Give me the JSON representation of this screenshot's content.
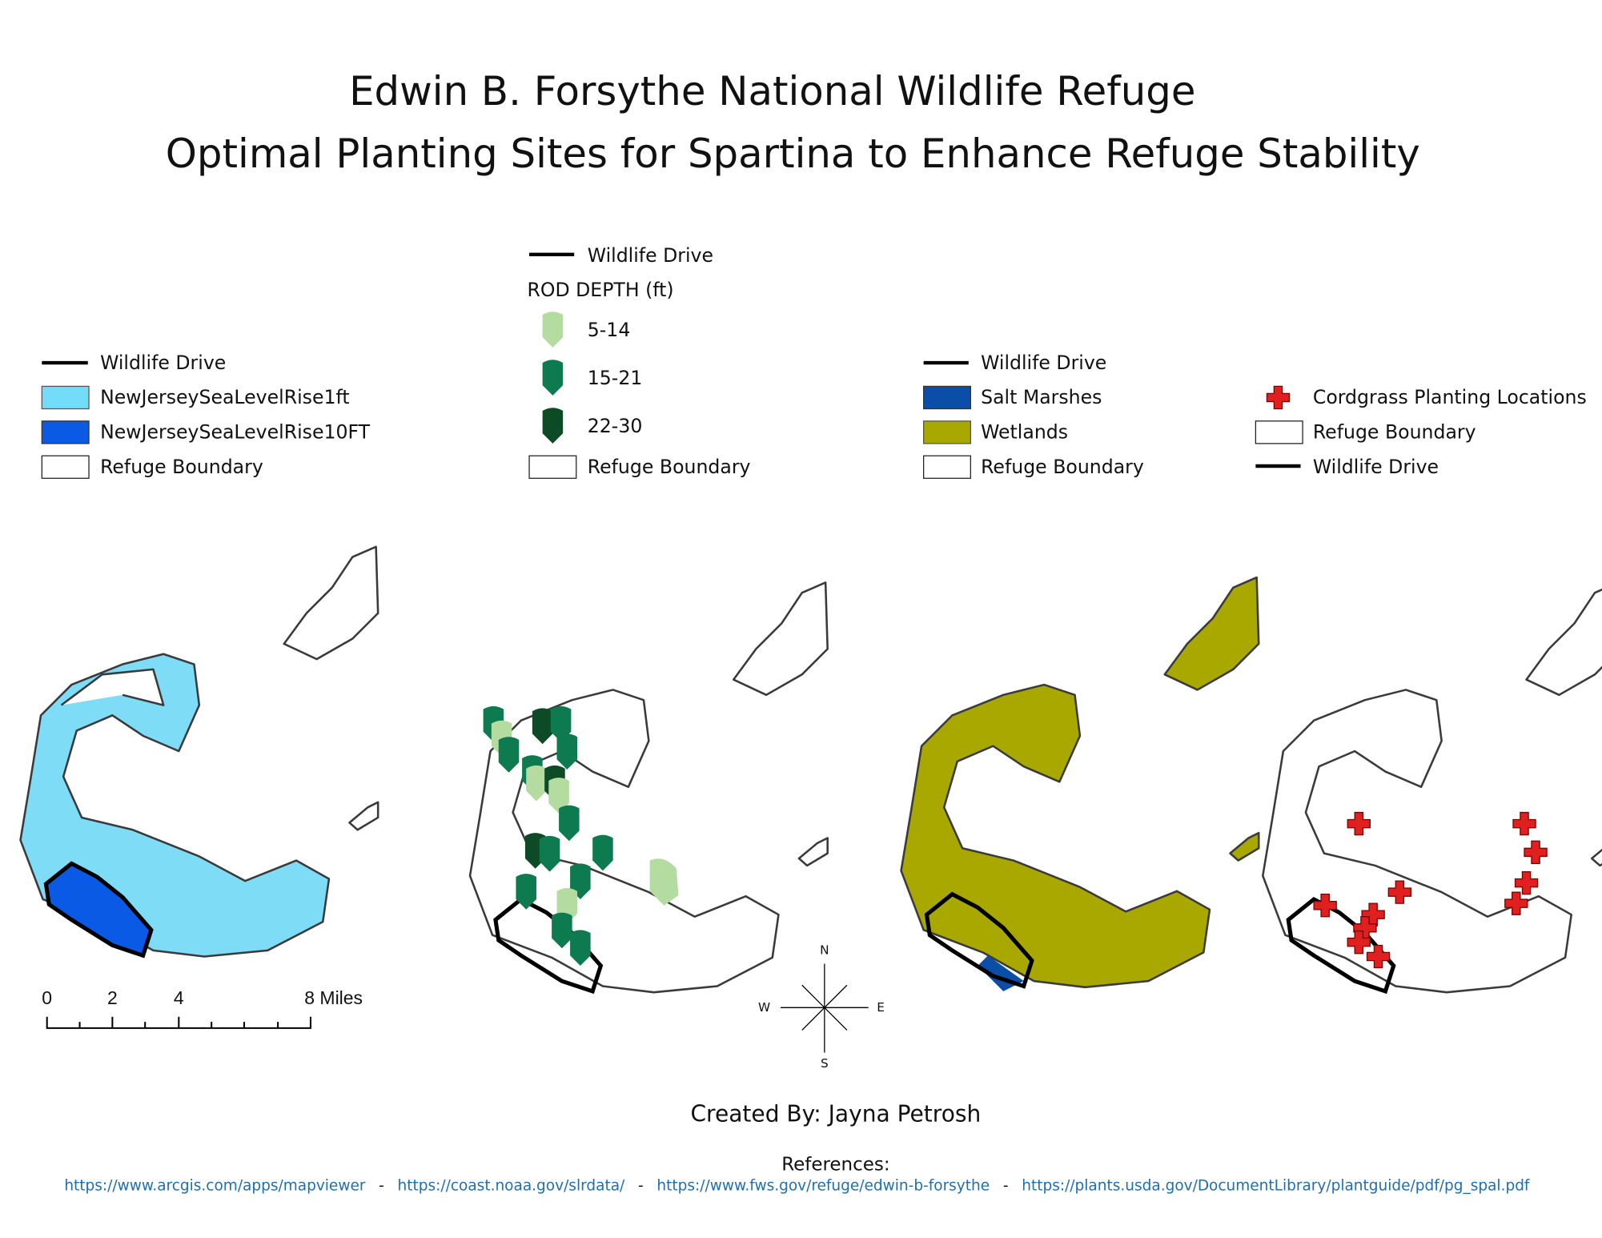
{
  "title": {
    "line1": "Edwin B. Forsythe National Wildlife Refuge",
    "line2": "Optimal Planting Sites for Spartina to Enhance Refuge Stability"
  },
  "legends": [
    {
      "items": [
        "Wildlife Drive",
        "NewJerseySeaLevelRise1ft",
        "NewJerseySeaLevelRise10FT",
        "Refuge Boundary"
      ]
    },
    {
      "heading": "ROD DEPTH (ft)",
      "items": [
        "Wildlife Drive",
        "5-14",
        "15-21",
        "22-30",
        "Refuge Boundary"
      ]
    },
    {
      "items": [
        "Wildlife Drive",
        "Salt Marshes",
        "Wetlands",
        "Refuge Boundary"
      ]
    },
    {
      "items": [
        "Cordgrass Planting Locations",
        "Refuge Boundary",
        "Wildlife Drive"
      ]
    }
  ],
  "scale_bar": {
    "labels": [
      "0",
      "2",
      "4",
      "8 Miles"
    ]
  },
  "compass": {
    "north": "N",
    "east": "E",
    "south": "S",
    "west": "W"
  },
  "credit": "Created By: Jayna Petrosh",
  "references": {
    "heading": "References:",
    "separator": "-",
    "links": [
      "https://www.arcgis.com/apps/mapviewer",
      "https://coast.noaa.gov/slrdata/",
      "https://www.fws.gov/refuge/edwin-b-forsythe",
      "https://plants.usda.gov/DocumentLibrary/plantguide/pdf/pg_spal.pdf"
    ]
  }
}
